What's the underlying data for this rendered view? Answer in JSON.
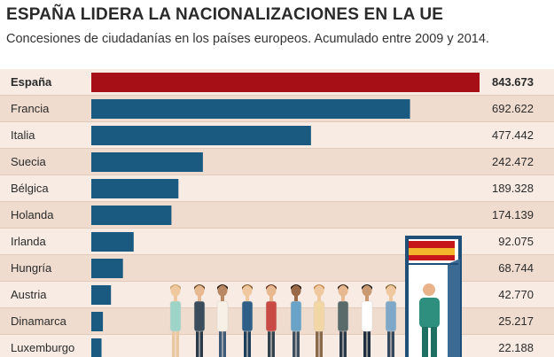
{
  "title": "ESPAÑA LIDERA LA NACIONALIZACIONES EN LA UE",
  "subtitle": "Concesiones de ciudadanías en los países europeos. Acumulado entre 2009 y 2014.",
  "colors": {
    "highlight": "#a50f15",
    "bar": "#1b5a80",
    "row_light": "#f7ebe3",
    "row_dark": "#efdccf"
  },
  "chart_data": {
    "type": "bar",
    "orientation": "horizontal",
    "title": "ESPAÑA LIDERA LA NACIONALIZACIONES EN LA UE",
    "subtitle": "Concesiones de ciudadanías en los países europeos. Acumulado entre 2009 y 2014.",
    "categories": [
      "España",
      "Francia",
      "Italia",
      "Suecia",
      "Bélgica",
      "Holanda",
      "Irlanda",
      "Hungría",
      "Austria",
      "Dinamarca",
      "Luxemburgo"
    ],
    "values": [
      843673,
      692622,
      477442,
      242472,
      189328,
      174139,
      92075,
      68744,
      42770,
      25217,
      22188
    ],
    "value_labels": [
      "843.673",
      "692.622",
      "477.442",
      "242.472",
      "189.328",
      "174.139",
      "92.075",
      "68.744",
      "42.770",
      "25.217",
      "22.188"
    ],
    "highlight": "España",
    "xlim": [
      0,
      843673
    ],
    "grid": false,
    "legend": "none"
  }
}
